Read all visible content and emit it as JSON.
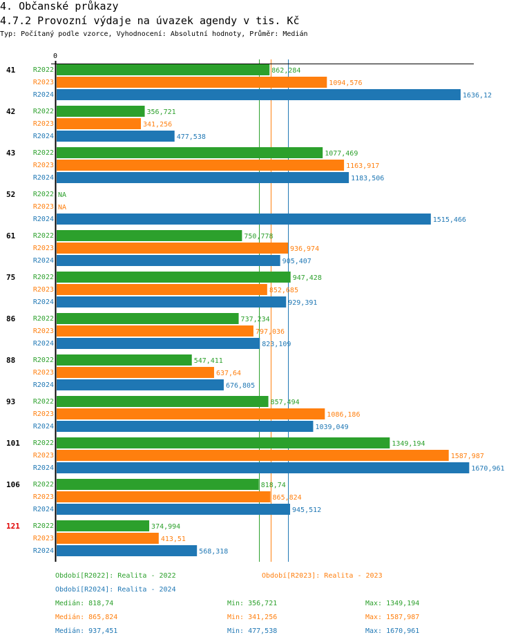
{
  "header": {
    "section_title": "4. Občanské průkazy",
    "chart_title": "4.7.2 Provozní výdaje na úvazek agendy v tis. Kč",
    "subtitle": "Typ: Počítaný podle vzorce, Vyhodnocení: Absolutní hodnoty, Průměr: Medián"
  },
  "colors": {
    "R2022": "#2ca02c",
    "R2023": "#ff7f0e",
    "R2024": "#1f77b4",
    "highlight_group": "#e00000",
    "axis": "#000000"
  },
  "chart_data": {
    "type": "bar",
    "orientation": "horizontal",
    "title": "4.7.2 Provozní výdaje na úvazek agendy v tis. Kč",
    "xlabel": "",
    "ylabel": "",
    "x_tick_labels": [
      "0"
    ],
    "xlim": [
      0,
      1670.961
    ],
    "grid": false,
    "categories": [
      "41",
      "42",
      "43",
      "52",
      "61",
      "75",
      "86",
      "88",
      "93",
      "101",
      "106",
      "121"
    ],
    "highlighted_category": "121",
    "series": [
      {
        "name": "R2022",
        "values": [
          862.284,
          356.721,
          1077.469,
          null,
          750.778,
          947.428,
          737.234,
          547.411,
          857.494,
          1349.194,
          818.74,
          374.994
        ],
        "labels": [
          "862,284",
          "356,721",
          "1077,469",
          "NA",
          "750,778",
          "947,428",
          "737,234",
          "547,411",
          "857,494",
          "1349,194",
          "818,74",
          "374,994"
        ]
      },
      {
        "name": "R2023",
        "values": [
          1094.576,
          341.256,
          1163.917,
          null,
          936.974,
          852.685,
          797.036,
          637.64,
          1086.186,
          1587.987,
          865.824,
          413.51
        ],
        "labels": [
          "1094,576",
          "341,256",
          "1163,917",
          "NA",
          "936,974",
          "852,685",
          "797,036",
          "637,64",
          "1086,186",
          "1587,987",
          "865,824",
          "413,51"
        ]
      },
      {
        "name": "R2024",
        "values": [
          1636.12,
          477.538,
          1183.506,
          1515.466,
          905.407,
          929.391,
          823.109,
          676.805,
          1039.049,
          1670.961,
          945.512,
          568.318
        ],
        "labels": [
          "1636,12",
          "477,538",
          "1183,506",
          "1515,466",
          "905,407",
          "929,391",
          "823,109",
          "676,805",
          "1039,049",
          "1670,961",
          "945,512",
          "568,318"
        ]
      }
    ],
    "reference_lines": [
      {
        "series": "R2022",
        "type": "median",
        "value": 818.74
      },
      {
        "series": "R2023",
        "type": "median",
        "value": 865.824
      },
      {
        "series": "R2024",
        "type": "median",
        "value": 937.451
      }
    ]
  },
  "footer": {
    "legend": [
      {
        "series": "R2022",
        "text": "Období[R2022]: Realita - 2022"
      },
      {
        "series": "R2023",
        "text": "Období[R2023]: Realita - 2023"
      },
      {
        "series": "R2024",
        "text": "Období[R2024]: Realita - 2024"
      }
    ],
    "stats": [
      {
        "series": "R2022",
        "median": "Medián: 818,74",
        "min": "Min: 356,721",
        "max": "Max: 1349,194"
      },
      {
        "series": "R2023",
        "median": "Medián: 865,824",
        "min": "Min: 341,256",
        "max": "Max: 1587,987"
      },
      {
        "series": "R2024",
        "median": "Medián: 937,451",
        "min": "Min: 477,538",
        "max": "Max: 1670,961"
      }
    ]
  }
}
